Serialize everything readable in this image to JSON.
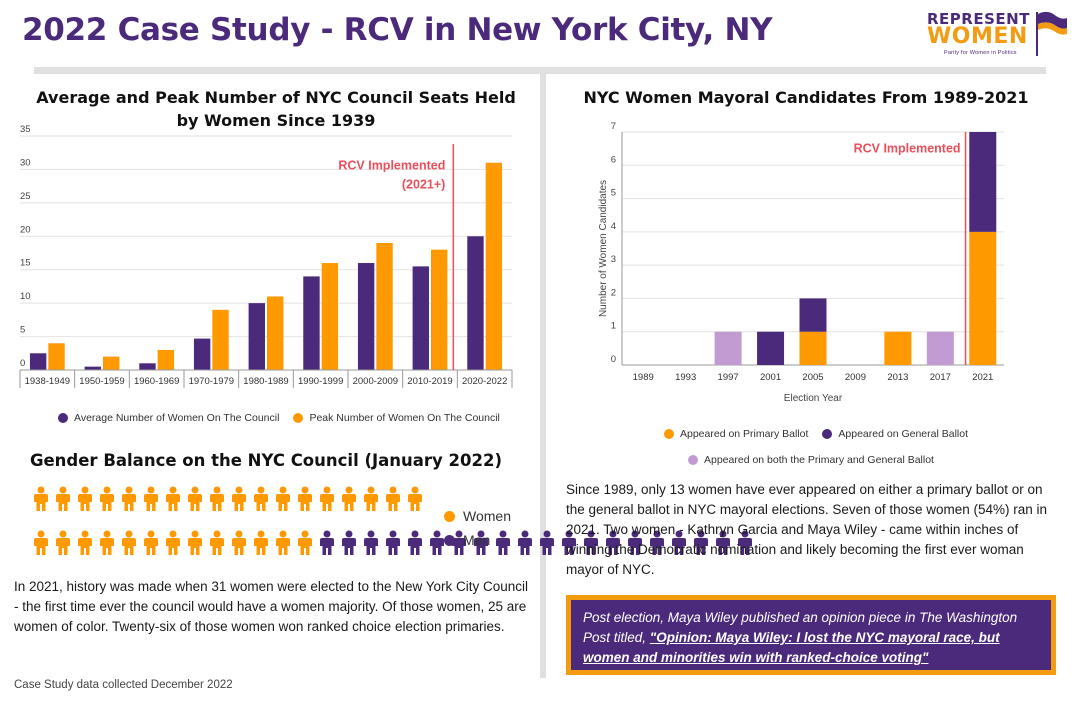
{
  "page": {
    "title": "2022 Case Study - RCV in New York City, NY",
    "footnote": "Case Study data collected December 2022"
  },
  "logo": {
    "line1": "REPRESENT",
    "line2": "WOMEN",
    "tagline": "Parity for Women in Politics"
  },
  "colors": {
    "purple": "#4b2a7b",
    "orange": "#ff9900",
    "lavender": "#c39bd3",
    "rcv_line": "#e8505b",
    "rcv_text": "#e8505b"
  },
  "chart_data": [
    {
      "id": "council",
      "type": "bar",
      "title": "Average and Peak Number of NYC Council Seats Held by Women Since 1939",
      "categories": [
        "1938-1949",
        "1950-1959",
        "1960-1969",
        "1970-1979",
        "1980-1989",
        "1990-1999",
        "2000-2009",
        "2010-2019",
        "2020-2022"
      ],
      "series": [
        {
          "name": "Average Number of Women On The Council",
          "color": "#4b2a7b",
          "values": [
            2.5,
            0.5,
            1,
            4.7,
            10,
            14,
            16,
            15.5,
            20
          ]
        },
        {
          "name": "Peak Number of Women On The Council",
          "color": "#ff9900",
          "values": [
            4,
            2,
            3,
            9,
            11,
            16,
            19,
            18,
            31
          ]
        }
      ],
      "yticks": [
        0,
        5,
        10,
        15,
        20,
        25,
        30,
        35
      ],
      "ylim": [
        0,
        35
      ],
      "grid": true,
      "legend": "bottom",
      "annotation": {
        "text_line1": "RCV Implemented",
        "text_line2": "(2021+)",
        "between_categories": [
          "2010-2019",
          "2020-2022"
        ]
      }
    },
    {
      "id": "mayoral",
      "type": "bar",
      "stacked": true,
      "title": "NYC Women Mayoral Candidates From 1989-2021",
      "categories": [
        "1989",
        "1993",
        "1997",
        "2001",
        "2005",
        "2009",
        "2013",
        "2017",
        "2021"
      ],
      "series": [
        {
          "name": "Appeared on Primary Ballot",
          "color": "#ff9900",
          "values": [
            0,
            0,
            0,
            0,
            1,
            0,
            1,
            0,
            4
          ]
        },
        {
          "name": "Appeared on General Ballot",
          "color": "#4b2a7b",
          "values": [
            0,
            0,
            0,
            1,
            1,
            0,
            0,
            0,
            3
          ]
        },
        {
          "name": "Appeared on both the Primary and General Ballot",
          "color": "#c39bd3",
          "values": [
            0,
            0,
            1,
            0,
            0,
            0,
            0,
            1,
            0
          ]
        }
      ],
      "yticks": [
        0,
        1,
        2,
        3,
        4,
        5,
        6,
        7
      ],
      "ylim": [
        0,
        7
      ],
      "xlabel": "Election Year",
      "ylabel": "Number of Women Candidates",
      "grid": true,
      "legend": "bottom",
      "annotation": {
        "text": "RCV Implemented",
        "between_categories": [
          "2017",
          "2021"
        ]
      }
    }
  ],
  "gender_balance": {
    "title": "Gender Balance on the NYC Council (January 2022)",
    "women": 31,
    "men": 20,
    "per_row": 18,
    "legend_women": "Women",
    "legend_men": "Men"
  },
  "left_paragraph": "In 2021, history was made when 31 women were elected to the New York City Council - the first time ever the council would have a women majority. Of those women, 25 are women of color. Twenty-six of those women won ranked choice election primaries.",
  "right_paragraph": "Since 1989, only 13 women have ever appeared on either a primary ballot or on the general ballot in NYC mayoral elections. Seven of those women (54%) ran in 2021. Two women - Kathryn Garcia and Maya Wiley - came within inches of winning the Democratic nomination and likely becoming the first ever woman mayor of NYC.",
  "callout": {
    "prefix": "Post election, Maya Wiley published an opinion piece in The Washington Post titled, ",
    "link_text": "\"Opinion: Maya Wiley: I lost the NYC mayoral race, but women and minorities win with ranked-choice voting\""
  }
}
